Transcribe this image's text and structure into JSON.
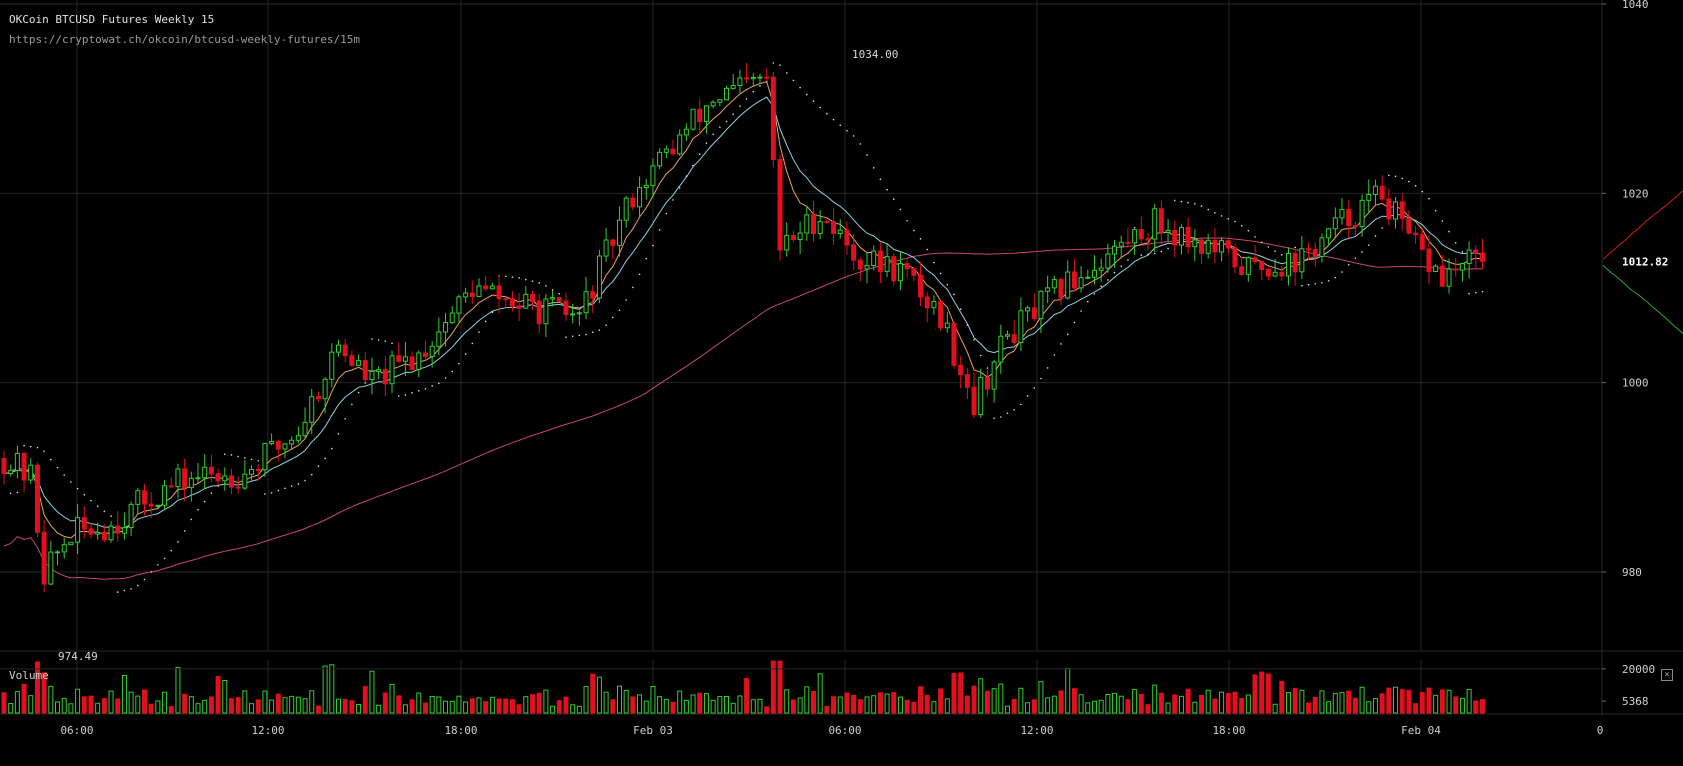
{
  "header": {
    "title": "OKCoin BTCUSD Futures Weekly 15",
    "url": "https://cryptowat.ch/okcoin/btcusd-weekly-futures/15m"
  },
  "volume_panel": {
    "label": "Volume",
    "close_icon": "close-icon",
    "close_glyph": "×"
  },
  "colors": {
    "up": "#2fcf2f",
    "down": "#e0101e",
    "ema_fast": "#e8a45a",
    "ema_slow": "#8fd3dc",
    "ma_long": "#c4486c",
    "sar": "#e0e0e0",
    "grid": "#262626",
    "depth_bid": "#2ea62e",
    "depth_ask": "#d21a1a"
  },
  "chart_data": [
    {
      "type": "candlestick",
      "title": "OKCoin BTCUSD Futures Weekly 15",
      "interval": "15m",
      "y_ticks": [
        1040,
        1020,
        1000,
        980
      ],
      "ylim": [
        966,
        1040
      ],
      "x_ticks": [
        "06:00",
        "12:00",
        "18:00",
        "Feb 03",
        "06:00",
        "12:00",
        "18:00",
        "Feb 04",
        "0"
      ],
      "last_price": 1012.82,
      "annotations": [
        {
          "label": "1034.00",
          "value": 1034.0,
          "kind": "high"
        },
        {
          "label": "974.49",
          "value": 974.49,
          "kind": "low"
        }
      ],
      "overlays": [
        "EMA (fast)",
        "EMA (slow)",
        "MA (long)",
        "Parabolic SAR"
      ],
      "anchors": [
        {
          "i": 0,
          "p": 992
        },
        {
          "i": 4,
          "p": 990
        },
        {
          "i": 6,
          "p": 980
        },
        {
          "i": 10,
          "p": 984
        },
        {
          "i": 16,
          "p": 985
        },
        {
          "i": 22,
          "p": 988
        },
        {
          "i": 28,
          "p": 990
        },
        {
          "i": 36,
          "p": 990.5
        },
        {
          "i": 44,
          "p": 995
        },
        {
          "i": 50,
          "p": 1004
        },
        {
          "i": 55,
          "p": 1000
        },
        {
          "i": 62,
          "p": 1003
        },
        {
          "i": 70,
          "p": 1010
        },
        {
          "i": 78,
          "p": 1008
        },
        {
          "i": 86,
          "p": 1007
        },
        {
          "i": 94,
          "p": 1020
        },
        {
          "i": 100,
          "p": 1025
        },
        {
          "i": 106,
          "p": 1030
        },
        {
          "i": 114,
          "p": 1032
        },
        {
          "i": 116,
          "p": 1014
        },
        {
          "i": 122,
          "p": 1018
        },
        {
          "i": 128,
          "p": 1013
        },
        {
          "i": 134,
          "p": 1012
        },
        {
          "i": 140,
          "p": 1007
        },
        {
          "i": 145,
          "p": 998
        },
        {
          "i": 150,
          "p": 1005
        },
        {
          "i": 158,
          "p": 1010
        },
        {
          "i": 166,
          "p": 1014
        },
        {
          "i": 172,
          "p": 1017
        },
        {
          "i": 178,
          "p": 1015
        },
        {
          "i": 186,
          "p": 1012
        },
        {
          "i": 194,
          "p": 1013
        },
        {
          "i": 200,
          "p": 1017
        },
        {
          "i": 206,
          "p": 1020
        },
        {
          "i": 210,
          "p": 1015
        },
        {
          "i": 215,
          "p": 1011
        },
        {
          "i": 220,
          "p": 1013
        }
      ]
    },
    {
      "type": "bar",
      "title": "Volume",
      "y_ticks": [
        20000,
        5368
      ],
      "ylim": [
        0,
        24000
      ],
      "current_volume": 5368
    }
  ]
}
